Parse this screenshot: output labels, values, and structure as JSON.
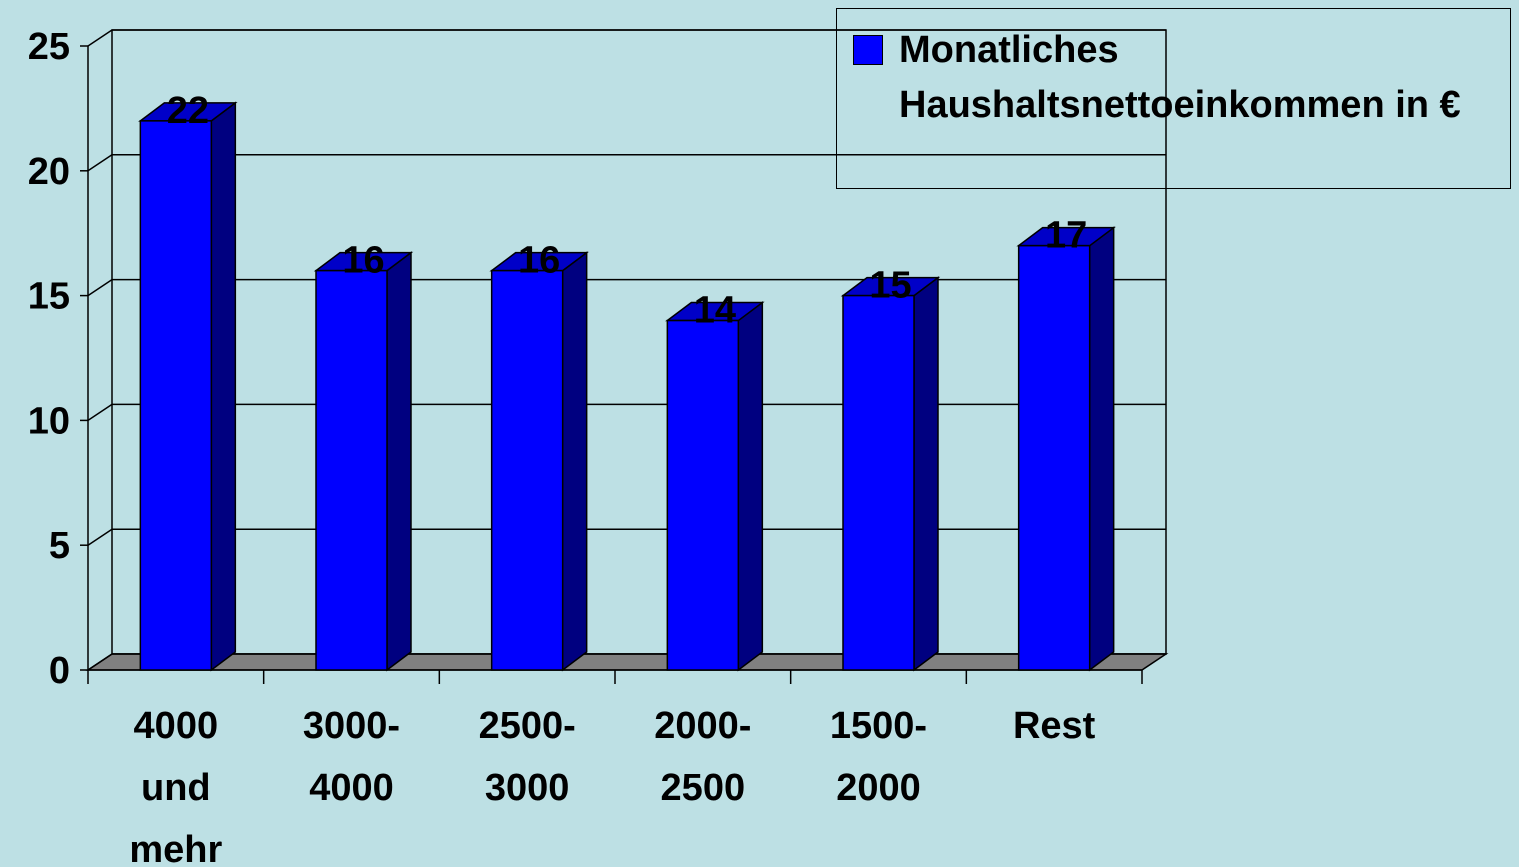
{
  "chart_data": {
    "type": "bar3d",
    "categories": [
      "4000 und mehr",
      "3000-4000",
      "2500-3000",
      "2000-2500",
      "1500-2000",
      "Rest"
    ],
    "series": [
      {
        "name": "Monatliches Haushaltsnettoeinkommen in €",
        "color": "#0000ff",
        "values": [
          22,
          16,
          16,
          14,
          15,
          17
        ]
      }
    ],
    "ylim": [
      0,
      25
    ],
    "yticks": [
      0,
      5,
      10,
      15,
      20,
      25
    ],
    "grid": true,
    "legend": "top-right"
  }
}
